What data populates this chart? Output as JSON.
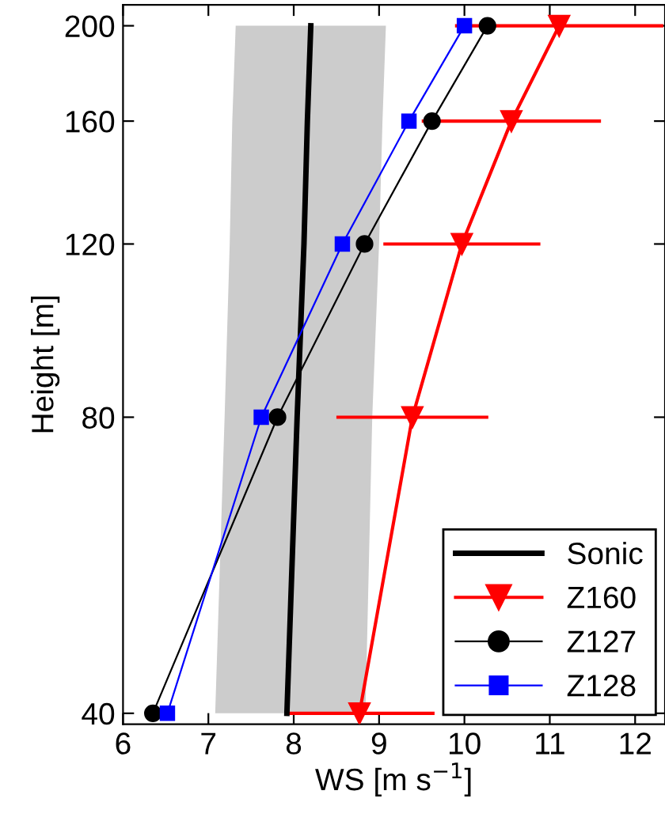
{
  "chart_data": {
    "type": "line",
    "orientation": "horizontal",
    "xlabel": "WS [m s$^{−1}$]",
    "ylabel": "Height [m]",
    "x": [
      40,
      80,
      120,
      160,
      200
    ],
    "series": [
      {
        "name": "Sonic",
        "color": "#000000",
        "values": [
          7.92,
          8.04,
          8.12,
          8.16,
          8.2
        ],
        "lower": [
          7.08,
          7.19,
          7.25,
          7.28,
          7.32
        ],
        "upper": [
          8.84,
          8.92,
          9.0,
          9.04,
          9.08
        ],
        "marker": "none"
      },
      {
        "name": "Z160",
        "color": "#ff0000",
        "values": [
          8.77,
          9.39,
          9.97,
          10.55,
          11.11
        ],
        "errors": [
          0.88,
          0.89,
          0.92,
          1.05,
          1.22
        ],
        "marker": "triangle"
      },
      {
        "name": "Z127",
        "color": "#000000",
        "values": [
          6.35,
          7.81,
          8.83,
          9.62,
          10.27
        ],
        "marker": "circle"
      },
      {
        "name": "Z128",
        "color": "#0000ff",
        "values": [
          6.52,
          7.62,
          8.57,
          9.35,
          10.0
        ],
        "marker": "square"
      }
    ],
    "log": "y",
    "xlim": [
      6,
      12.35
    ],
    "ylim": [
      39,
      210
    ],
    "xticks": [
      6,
      7,
      8,
      9,
      10,
      11,
      12
    ],
    "yticks": [
      40,
      80,
      120,
      160,
      200
    ],
    "grid": false,
    "legend": "bottom right"
  }
}
